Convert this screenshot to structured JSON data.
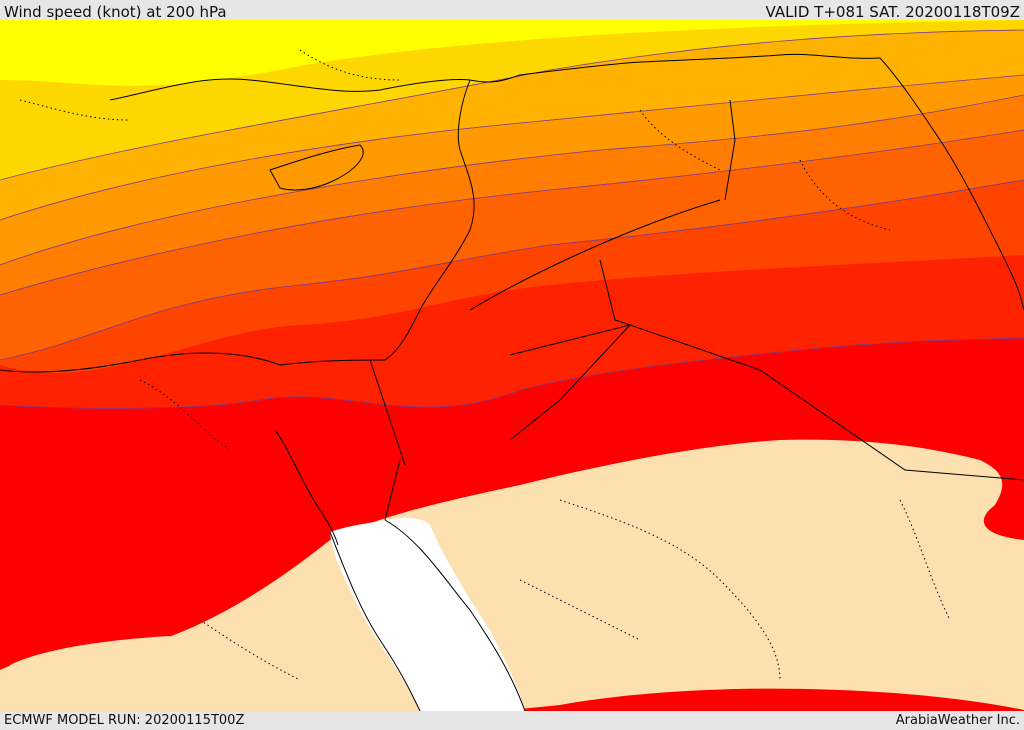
{
  "header": {
    "title": "Wind speed (knot) at 200 hPa",
    "valid": "VALID T+081 SAT. 20200118T09Z"
  },
  "footer": {
    "model_run": "ECMWF MODEL RUN: 20200115T00Z",
    "credit": "ArabiaWeather Inc."
  },
  "colors": {
    "band1": "#ffff00",
    "band2": "#ffd700",
    "band3": "#ffb300",
    "band4": "#ff9900",
    "band5": "#ff7d00",
    "band6": "#ff6200",
    "band7": "#ff4400",
    "band8": "#ff2200",
    "band9": "#ff0000",
    "calm": "#fde0b0",
    "sea": "#ffffff",
    "contour": "#7a3a8a",
    "coast": "#000000"
  }
}
